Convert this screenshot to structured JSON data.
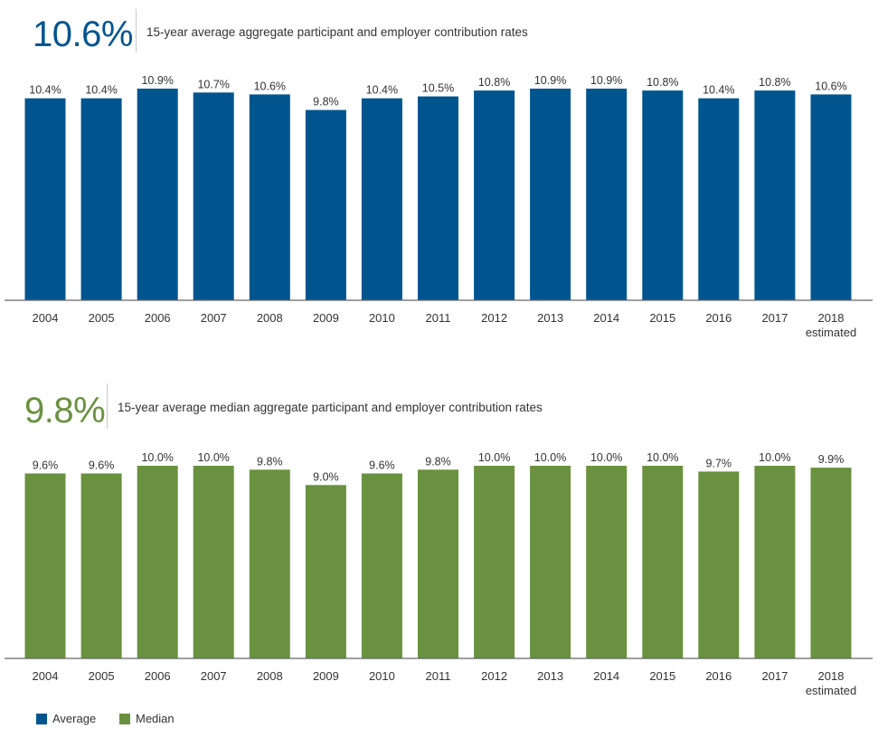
{
  "colors": {
    "average": "#00558f",
    "median": "#6a9140",
    "axis": "#666666",
    "text": "#333333"
  },
  "chart_data": [
    {
      "type": "bar",
      "title": "15-year average aggregate participant and employer contribution rates",
      "headline": "10.6%",
      "series_key": "average",
      "categories": [
        "2004",
        "2005",
        "2006",
        "2007",
        "2008",
        "2009",
        "2010",
        "2011",
        "2012",
        "2013",
        "2014",
        "2015",
        "2016",
        "2017",
        "2018"
      ],
      "category_sublabels": [
        "",
        "",
        "",
        "",
        "",
        "",
        "",
        "",
        "",
        "",
        "",
        "",
        "",
        "",
        "estimated"
      ],
      "values": [
        10.4,
        10.4,
        10.9,
        10.7,
        10.6,
        9.8,
        10.4,
        10.5,
        10.8,
        10.9,
        10.9,
        10.8,
        10.4,
        10.8,
        10.6
      ],
      "value_labels": [
        "10.4%",
        "10.4%",
        "10.9%",
        "10.7%",
        "10.6%",
        "9.8%",
        "10.4%",
        "10.5%",
        "10.8%",
        "10.9%",
        "10.9%",
        "10.8%",
        "10.4%",
        "10.8%",
        "10.6%"
      ],
      "ylim": [
        0,
        10.9
      ],
      "grid": false
    },
    {
      "type": "bar",
      "title": "15-year average median aggregate participant and employer contribution rates",
      "headline": "9.8%",
      "series_key": "median",
      "categories": [
        "2004",
        "2005",
        "2006",
        "2007",
        "2008",
        "2009",
        "2010",
        "2011",
        "2012",
        "2013",
        "2014",
        "2015",
        "2016",
        "2017",
        "2018"
      ],
      "category_sublabels": [
        "",
        "",
        "",
        "",
        "",
        "",
        "",
        "",
        "",
        "",
        "",
        "",
        "",
        "",
        "estimated"
      ],
      "values": [
        9.6,
        9.6,
        10.0,
        10.0,
        9.8,
        9.0,
        9.6,
        9.8,
        10.0,
        10.0,
        10.0,
        10.0,
        9.7,
        10.0,
        9.9
      ],
      "value_labels": [
        "9.6%",
        "9.6%",
        "10.0%",
        "10.0%",
        "9.8%",
        "9.0%",
        "9.6%",
        "9.8%",
        "10.0%",
        "10.0%",
        "10.0%",
        "10.0%",
        "9.7%",
        "10.0%",
        "9.9%"
      ],
      "ylim": [
        0,
        10.0
      ],
      "grid": false
    }
  ],
  "legend": {
    "position": "bottom-left",
    "items": [
      {
        "label": "Average",
        "color_key": "average"
      },
      {
        "label": "Median",
        "color_key": "median"
      }
    ]
  }
}
